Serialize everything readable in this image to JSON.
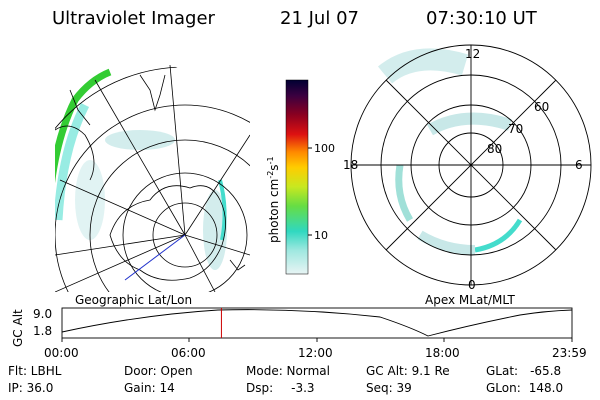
{
  "header": {
    "title": "Ultraviolet Imager",
    "date": "21 Jul 07",
    "time": "07:30:10 UT"
  },
  "colorbar": {
    "unit_label": "photon cm",
    "unit_exp1": "-2",
    "unit_mid": "s",
    "unit_exp2": "-1",
    "ticks": [
      "100",
      "10"
    ]
  },
  "polar_plot": {
    "mlt_labels": [
      "12",
      "18",
      "6",
      "0"
    ],
    "lat_labels": [
      "60",
      "70",
      "80"
    ]
  },
  "panel_labels": {
    "left": "Geographic Lat/Lon",
    "right": "Apex MLat/MLT"
  },
  "altitude_plot": {
    "ylabel": "GC Alt",
    "yticks": [
      "9.0",
      "1.8"
    ],
    "xticks": [
      "00:00",
      "06:00",
      "12:00",
      "18:00",
      "23:59"
    ],
    "current_time_fraction": 0.3126
  },
  "status": {
    "flt": "Flt: LBHL",
    "ip": "IP: 36.0",
    "door": "Door: Open",
    "gain": "Gain: 14",
    "mode": "Mode: Normal",
    "dsp_label": "Dsp:",
    "dsp_value": "-3.3",
    "gcalt": "GC Alt: 9.1 Re",
    "seq": "Seq: 39",
    "glat_label": "GLat:",
    "glat_value": "-65.8",
    "glon_label": "GLon:",
    "glon_value": "148.0"
  },
  "colors": {
    "green": "#33cc33",
    "cyan": "#44dccc",
    "pale": "#c8e8e8",
    "marker": "#cc0000",
    "blue_line": "#2233cc"
  }
}
